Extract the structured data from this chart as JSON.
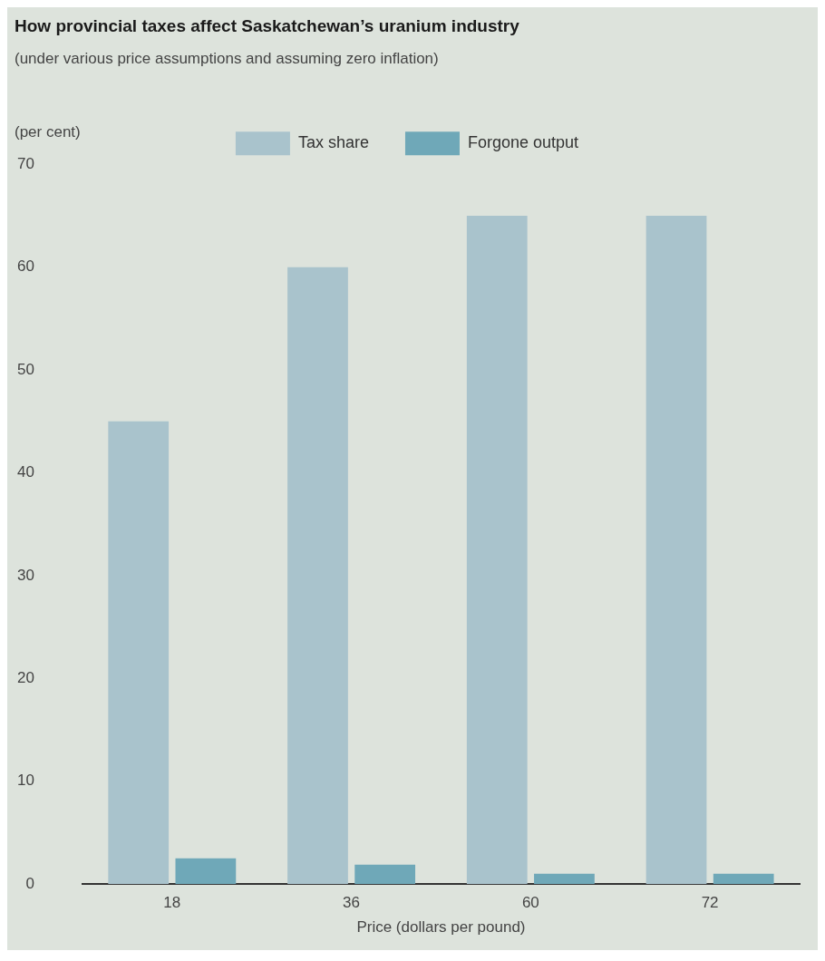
{
  "chart_data": {
    "type": "bar",
    "title": "How provincial taxes affect Saskatchewan’s uranium industry",
    "subtitle": "(under various price assumptions and assuming zero inflation)",
    "xlabel": "Price (dollars per pound)",
    "ylabel": "(per cent)",
    "categories": [
      "18",
      "36",
      "60",
      "72"
    ],
    "series": [
      {
        "name": "Tax share",
        "color": "#a9c3cc",
        "values": [
          45,
          60,
          65,
          65
        ]
      },
      {
        "name": "Forgone output",
        "color": "#6fa8b8",
        "values": [
          2.5,
          1.9,
          1,
          1
        ]
      }
    ],
    "ylim": [
      0,
      70
    ],
    "yticks": [
      0,
      10,
      20,
      30,
      40,
      50,
      60,
      70
    ],
    "grid": false,
    "legend": "top"
  }
}
